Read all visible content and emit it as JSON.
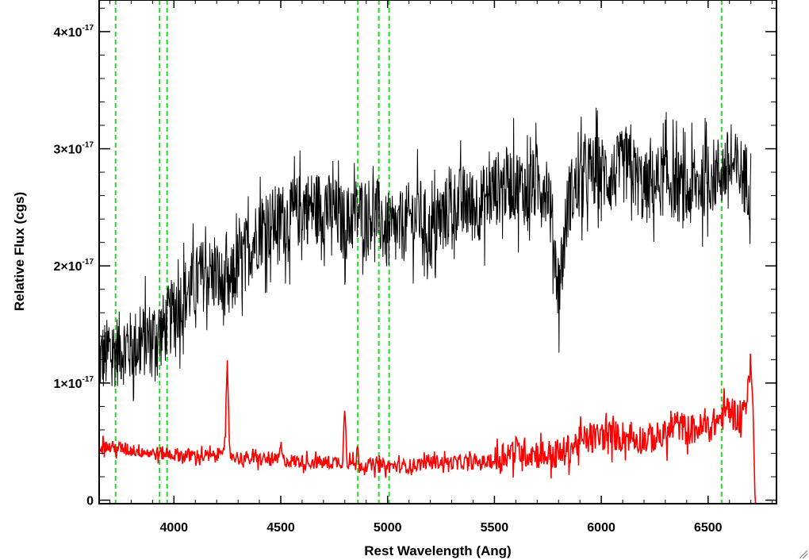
{
  "chart_data": {
    "type": "line",
    "xlabel": "Rest Wavelength (Ang)",
    "ylabel": "Relative Flux (cgs)",
    "xlim": [
      3650,
      6820
    ],
    "ylim": [
      -0.03,
      4.27
    ],
    "y_scale_note": "x10^-17",
    "x_ticks": [
      {
        "value": 4000,
        "label": "4000"
      },
      {
        "value": 4500,
        "label": "4500"
      },
      {
        "value": 5000,
        "label": "5000"
      },
      {
        "value": 5500,
        "label": "5500"
      },
      {
        "value": 6000,
        "label": "6000"
      },
      {
        "value": 6500,
        "label": "6500"
      }
    ],
    "y_ticks": [
      {
        "value": 0,
        "mantissa": "0",
        "exponent": ""
      },
      {
        "value": 1,
        "mantissa": "1×10",
        "exponent": "-17"
      },
      {
        "value": 2,
        "mantissa": "2×10",
        "exponent": "-17"
      },
      {
        "value": 3,
        "mantissa": "3×10",
        "exponent": "-17"
      },
      {
        "value": 4,
        "mantissa": "4×10",
        "exponent": "-17"
      }
    ],
    "vertical_lines": [
      3727,
      3933,
      3968,
      4861,
      4959,
      5007,
      6563
    ],
    "series": [
      {
        "color": "#000000",
        "x": [
          3650,
          3700,
          3750,
          3800,
          3850,
          3900,
          3950,
          4000,
          4050,
          4100,
          4150,
          4200,
          4250,
          4300,
          4350,
          4400,
          4450,
          4500,
          4550,
          4600,
          4650,
          4700,
          4750,
          4800,
          4850,
          4900,
          4950,
          5000,
          5050,
          5100,
          5150,
          5200,
          5250,
          5300,
          5350,
          5400,
          5450,
          5500,
          5550,
          5600,
          5650,
          5700,
          5750,
          5800,
          5850,
          5900,
          5950,
          6000,
          6050,
          6100,
          6150,
          6200,
          6250,
          6300,
          6350,
          6400,
          6450,
          6500,
          6550,
          6600,
          6650,
          6700
        ],
        "y": [
          1.2,
          1.25,
          1.3,
          1.3,
          1.35,
          1.4,
          1.45,
          1.6,
          1.75,
          1.85,
          1.95,
          1.9,
          1.75,
          2.0,
          2.15,
          2.3,
          2.35,
          2.4,
          2.4,
          2.5,
          2.5,
          2.5,
          2.45,
          2.35,
          2.45,
          2.45,
          2.45,
          2.25,
          2.3,
          2.4,
          2.45,
          2.25,
          2.4,
          2.5,
          2.55,
          2.5,
          2.55,
          2.65,
          2.7,
          2.7,
          2.65,
          2.7,
          2.7,
          1.8,
          2.6,
          2.7,
          2.8,
          2.8,
          2.75,
          2.85,
          2.8,
          2.65,
          2.7,
          2.75,
          2.7,
          2.6,
          2.7,
          2.75,
          2.8,
          2.85,
          2.8,
          2.7
        ],
        "noise_amplitude": 0.32
      },
      {
        "color": "#ff0000",
        "x": [
          3650,
          3700,
          3750,
          3800,
          3850,
          3900,
          3950,
          4000,
          4100,
          4200,
          4240,
          4250,
          4260,
          4300,
          4400,
          4490,
          4500,
          4510,
          4600,
          4700,
          4790,
          4800,
          4810,
          4850,
          4860,
          4870,
          4900,
          5000,
          5100,
          5200,
          5300,
          5400,
          5500,
          5550,
          5600,
          5700,
          5800,
          5900,
          6000,
          6100,
          6200,
          6300,
          6350,
          6400,
          6500,
          6560,
          6600,
          6650,
          6690,
          6700,
          6710,
          6720,
          6820
        ],
        "y": [
          0.47,
          0.45,
          0.44,
          0.43,
          0.42,
          0.4,
          0.4,
          0.39,
          0.38,
          0.37,
          0.5,
          1.15,
          0.4,
          0.36,
          0.35,
          0.34,
          0.48,
          0.34,
          0.33,
          0.32,
          0.33,
          0.85,
          0.33,
          0.3,
          0.45,
          0.3,
          0.3,
          0.29,
          0.29,
          0.33,
          0.32,
          0.32,
          0.33,
          0.4,
          0.42,
          0.4,
          0.38,
          0.5,
          0.55,
          0.55,
          0.52,
          0.55,
          0.65,
          0.6,
          0.62,
          0.7,
          0.8,
          0.68,
          0.95,
          1.15,
          0.8,
          -0.03,
          -0.03
        ],
        "noise_amplitude": 0.06
      }
    ]
  }
}
